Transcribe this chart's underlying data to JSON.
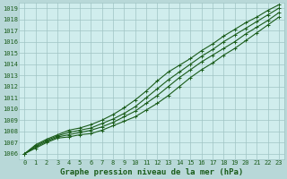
{
  "title": "Graphe pression niveau de la mer (hPa)",
  "xlabel": "Graphe pression niveau de la mer (hPa)",
  "bg_color": "#d0eded",
  "line_color": "#1a5c1a",
  "grid_color": "#a0c4c4",
  "xlim": [
    -0.5,
    23.5
  ],
  "ylim": [
    1005.5,
    1019.5
  ],
  "yticks": [
    1006,
    1007,
    1008,
    1009,
    1010,
    1011,
    1012,
    1013,
    1014,
    1015,
    1016,
    1017,
    1018,
    1019
  ],
  "xticks": [
    0,
    1,
    2,
    3,
    4,
    5,
    6,
    7,
    8,
    9,
    10,
    11,
    12,
    13,
    14,
    15,
    16,
    17,
    18,
    19,
    20,
    21,
    22,
    23
  ],
  "series": [
    [
      1006.0,
      1006.5,
      1007.0,
      1007.4,
      1007.5,
      1007.7,
      1007.8,
      1008.1,
      1008.5,
      1008.9,
      1009.3,
      1009.9,
      1010.5,
      1011.2,
      1012.0,
      1012.8,
      1013.5,
      1014.1,
      1014.8,
      1015.4,
      1016.1,
      1016.8,
      1017.5,
      1018.2
    ],
    [
      1006.0,
      1006.6,
      1007.1,
      1007.5,
      1007.7,
      1007.9,
      1008.1,
      1008.4,
      1008.8,
      1009.3,
      1009.8,
      1010.5,
      1011.2,
      1012.0,
      1012.8,
      1013.5,
      1014.2,
      1014.8,
      1015.4,
      1016.0,
      1016.7,
      1017.3,
      1017.9,
      1018.6
    ],
    [
      1006.0,
      1006.7,
      1007.2,
      1007.6,
      1007.9,
      1008.1,
      1008.3,
      1008.7,
      1009.1,
      1009.6,
      1010.2,
      1011.0,
      1011.8,
      1012.6,
      1013.3,
      1014.0,
      1014.7,
      1015.3,
      1016.0,
      1016.6,
      1017.2,
      1017.8,
      1018.4,
      1019.0
    ],
    [
      1006.0,
      1006.8,
      1007.3,
      1007.7,
      1008.1,
      1008.3,
      1008.6,
      1009.0,
      1009.5,
      1010.1,
      1010.8,
      1011.6,
      1012.5,
      1013.3,
      1013.9,
      1014.5,
      1015.2,
      1015.8,
      1016.5,
      1017.1,
      1017.7,
      1018.2,
      1018.8,
      1019.3
    ]
  ],
  "marker": "+",
  "markersize": 3.5,
  "linewidth": 0.8,
  "title_fontsize": 6.5,
  "tick_fontsize": 5.0,
  "title_color": "#1a5c1a",
  "fig_bg": "#b8d8d8"
}
